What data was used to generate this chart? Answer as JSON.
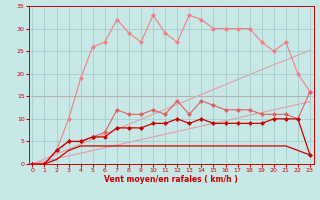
{
  "x": [
    0,
    1,
    2,
    3,
    4,
    5,
    6,
    7,
    8,
    9,
    10,
    11,
    12,
    13,
    14,
    15,
    16,
    17,
    18,
    19,
    20,
    21,
    22,
    23
  ],
  "series": [
    {
      "name": "horizontal_line_15",
      "color": "#e08080",
      "linewidth": 0.8,
      "marker": null,
      "linestyle": "-",
      "zorder": 1,
      "y": [
        15,
        15,
        15,
        15,
        15,
        15,
        15,
        15,
        15,
        15,
        15,
        15,
        15,
        15,
        15,
        15,
        15,
        15,
        15,
        15,
        15,
        15,
        15,
        15
      ]
    },
    {
      "name": "straight_line_steep",
      "color": "#e0a0a0",
      "linewidth": 0.8,
      "marker": null,
      "linestyle": "-",
      "zorder": 1,
      "y": [
        0,
        1.1,
        2.2,
        3.3,
        4.4,
        5.5,
        6.6,
        7.7,
        8.8,
        9.9,
        11,
        12.1,
        13.2,
        14.3,
        15.4,
        16.5,
        17.6,
        18.7,
        19.8,
        20.9,
        22,
        23,
        24.1,
        25.2
      ]
    },
    {
      "name": "straight_line_shallow",
      "color": "#e0a0a0",
      "linewidth": 0.8,
      "marker": null,
      "linestyle": "-",
      "zorder": 1,
      "y": [
        0,
        0.6,
        1.2,
        1.8,
        2.4,
        3.0,
        3.6,
        4.2,
        4.8,
        5.4,
        6.0,
        6.6,
        7.2,
        7.8,
        8.4,
        9.0,
        9.6,
        10.2,
        10.8,
        11.4,
        12.0,
        12.6,
        13.2,
        13.8
      ]
    },
    {
      "name": "top_curve_light_pink_markers",
      "color": "#f08080",
      "linewidth": 0.8,
      "marker": "D",
      "markersize": 2,
      "linestyle": "-",
      "zorder": 3,
      "y": [
        0,
        0,
        3,
        10,
        19,
        26,
        27,
        32,
        29,
        27,
        33,
        29,
        27,
        33,
        32,
        30,
        30,
        30,
        30,
        27,
        25,
        27,
        20,
        16
      ]
    },
    {
      "name": "mid_curve_pink_markers",
      "color": "#e06060",
      "linewidth": 0.8,
      "marker": "D",
      "markersize": 2,
      "linestyle": "-",
      "zorder": 3,
      "y": [
        0,
        0,
        3,
        5,
        5,
        6,
        7,
        12,
        11,
        11,
        12,
        11,
        14,
        11,
        14,
        13,
        12,
        12,
        12,
        11,
        11,
        11,
        10,
        16
      ]
    },
    {
      "name": "flat_bottom_dark",
      "color": "#cc0000",
      "linewidth": 0.9,
      "marker": null,
      "linestyle": "-",
      "zorder": 2,
      "y": [
        0,
        0,
        1,
        3,
        4,
        4,
        4,
        4,
        4,
        4,
        4,
        4,
        4,
        4,
        4,
        4,
        4,
        4,
        4,
        4,
        4,
        4,
        3,
        2
      ]
    },
    {
      "name": "main_dark_red_markers",
      "color": "#cc0000",
      "linewidth": 0.9,
      "marker": "D",
      "markersize": 2,
      "linestyle": "-",
      "zorder": 3,
      "y": [
        0,
        0,
        3,
        5,
        5,
        6,
        6,
        8,
        8,
        8,
        9,
        9,
        10,
        9,
        10,
        9,
        9,
        9,
        9,
        9,
        10,
        10,
        10,
        2
      ]
    }
  ],
  "xlabel": "Vent moyen/en rafales ( km/h )",
  "xlim": [
    -0.3,
    23.3
  ],
  "ylim": [
    0,
    35
  ],
  "xticks": [
    0,
    1,
    2,
    3,
    4,
    5,
    6,
    7,
    8,
    9,
    10,
    11,
    12,
    13,
    14,
    15,
    16,
    17,
    18,
    19,
    20,
    21,
    22,
    23
  ],
  "yticks": [
    0,
    5,
    10,
    15,
    20,
    25,
    30,
    35
  ],
  "bg_color": "#c8e8e8",
  "grid_color": "#a0c8c8",
  "tick_color": "#cc0000",
  "label_color": "#cc0000"
}
